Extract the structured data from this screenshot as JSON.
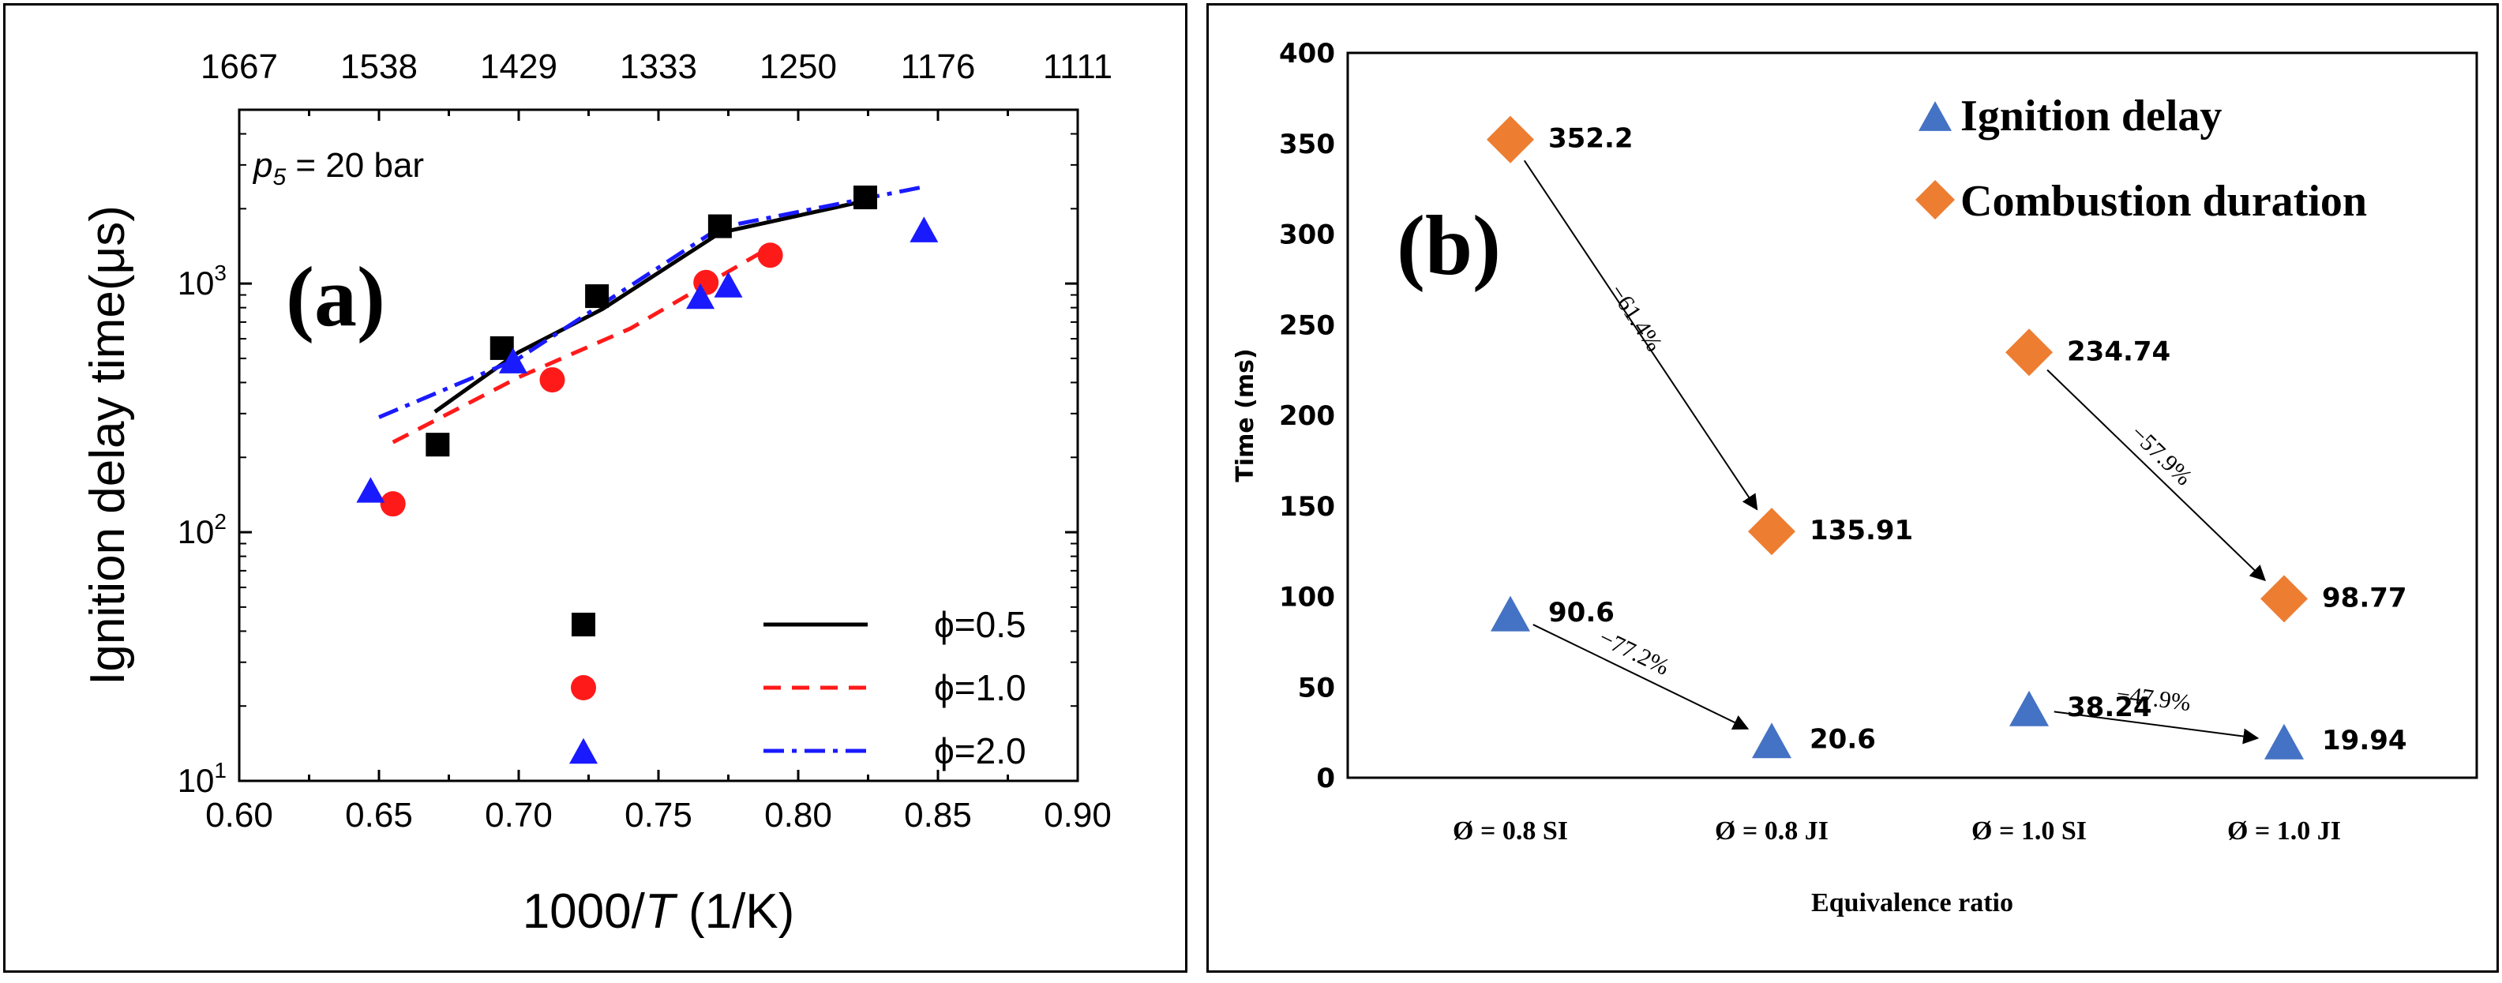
{
  "chart_data": [
    {
      "type": "scatter",
      "panel_label": "(a)",
      "annotation_prefix": "p",
      "annotation_sub": "5",
      "annotation_rest": " = 20 bar",
      "xlabel_prefix": "1000/",
      "xlabel_italic": "T",
      "xlabel_suffix": " (1/K)",
      "ylabel": "Ignition delay time(μs)",
      "xlim": [
        0.6,
        0.9
      ],
      "ylim_log": [
        10,
        5000
      ],
      "x_ticks": [
        "0.60",
        "0.65",
        "0.70",
        "0.75",
        "0.80",
        "0.85",
        "0.90"
      ],
      "y_ticks": [
        {
          "value": 10,
          "base": "10",
          "exp": "1"
        },
        {
          "value": 100,
          "base": "10",
          "exp": "2"
        },
        {
          "value": 1000,
          "base": "10",
          "exp": "3"
        }
      ],
      "top_ticks": [
        "1667",
        "1538",
        "1429",
        "1333",
        "1250",
        "1176",
        "1111"
      ],
      "legend": [
        {
          "marker": "square",
          "label": "ϕ=0.5"
        },
        {
          "marker": "circle",
          "label": "ϕ=1.0"
        },
        {
          "marker": "triangle",
          "label": "ϕ=2.0"
        }
      ],
      "series": [
        {
          "name": "ϕ=0.5",
          "color": "#000000",
          "marker": "square",
          "points": [
            [
              0.671,
              225
            ],
            [
              0.694,
              550
            ],
            [
              0.728,
              890
            ],
            [
              0.772,
              1700
            ],
            [
              0.824,
              2220
            ]
          ],
          "line": [
            [
              0.67,
              305
            ],
            [
              0.7,
              530
            ],
            [
              0.73,
              790
            ],
            [
              0.772,
              1600
            ],
            [
              0.824,
              2150
            ]
          ]
        },
        {
          "name": "ϕ=1.0",
          "color": "#ff1a1a",
          "marker": "circle",
          "points": [
            [
              0.655,
              130
            ],
            [
              0.712,
              410
            ],
            [
              0.767,
              1010
            ],
            [
              0.79,
              1300
            ]
          ],
          "line": [
            [
              0.655,
              230
            ],
            [
              0.7,
              420
            ],
            [
              0.74,
              660
            ],
            [
              0.79,
              1400
            ]
          ]
        },
        {
          "name": "ϕ=2.0",
          "color": "#1a1aff",
          "marker": "triangle",
          "points": [
            [
              0.647,
              148
            ],
            [
              0.698,
              490
            ],
            [
              0.765,
              890
            ],
            [
              0.775,
              990
            ],
            [
              0.845,
              1650
            ]
          ],
          "line": [
            [
              0.65,
              290
            ],
            [
              0.7,
              500
            ],
            [
              0.772,
              1680
            ],
            [
              0.845,
              2450
            ]
          ]
        }
      ]
    },
    {
      "type": "scatter",
      "panel_label": "(b)",
      "xlabel": "Equivalence ratio",
      "ylabel": "Time (ms)",
      "ylim": [
        0,
        400
      ],
      "y_ticks": [
        0,
        50,
        100,
        150,
        200,
        250,
        300,
        350,
        400
      ],
      "categories": [
        "Ø = 0.8 SI",
        "Ø = 0.8 JI",
        "Ø = 1.0 SI",
        "Ø = 1.0 JI"
      ],
      "legend": [
        {
          "marker": "triangle",
          "label": "Ignition delay"
        },
        {
          "marker": "diamond",
          "label": "Combustion duration"
        }
      ],
      "series": [
        {
          "name": "Ignition delay",
          "color": "#4472c4",
          "marker": "triangle",
          "values": [
            90.6,
            20.6,
            38.24,
            19.94
          ],
          "labels": [
            "90.6",
            "20.6",
            "38.24",
            "19.94"
          ]
        },
        {
          "name": "Combustion duration",
          "color": "#ed7d31",
          "marker": "diamond",
          "values": [
            352.2,
            135.91,
            234.74,
            98.77
          ],
          "labels": [
            "352.2",
            "135.91",
            "234.74",
            "98.77"
          ]
        }
      ],
      "arrows": [
        {
          "series": 1,
          "from": 0,
          "to": 1,
          "label": "−61.4%"
        },
        {
          "series": 1,
          "from": 2,
          "to": 3,
          "label": "−57.9%"
        },
        {
          "series": 0,
          "from": 0,
          "to": 1,
          "label": "−77.2%"
        },
        {
          "series": 0,
          "from": 2,
          "to": 3,
          "label": "−47.9%"
        }
      ]
    }
  ]
}
